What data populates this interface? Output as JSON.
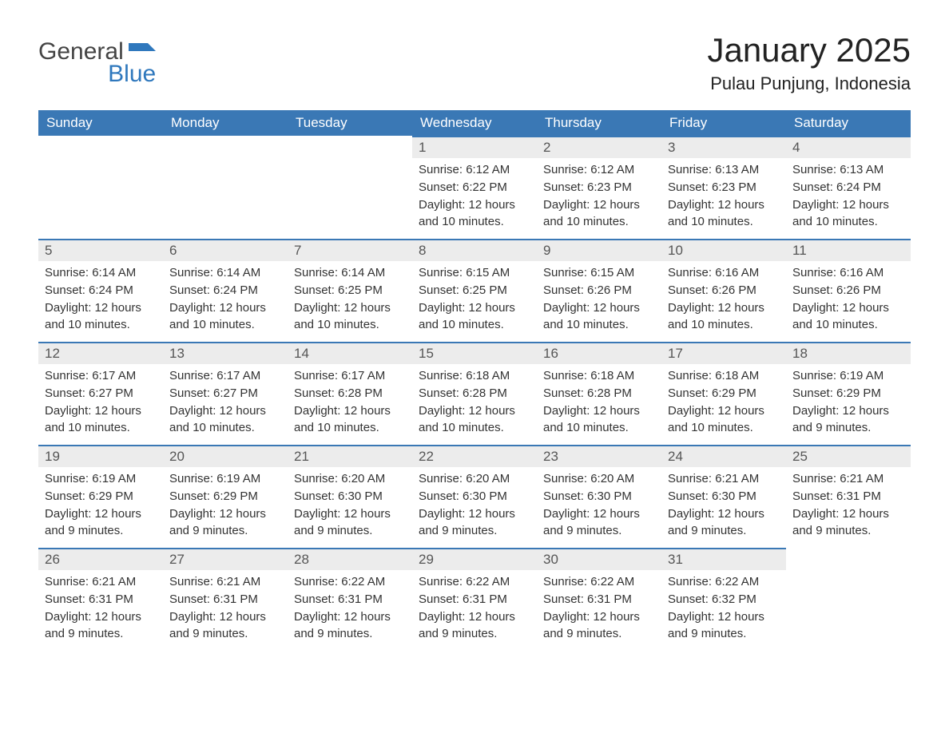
{
  "logo": {
    "text1": "General",
    "text2": "Blue"
  },
  "title": "January 2025",
  "location": "Pulau Punjung, Indonesia",
  "colors": {
    "header_bg": "#3a78b5",
    "header_text": "#ffffff",
    "daynum_bg": "#ececec",
    "daynum_border": "#3a78b5",
    "body_text": "#333333",
    "logo_gray": "#444444",
    "logo_blue": "#2f78bd",
    "page_bg": "#ffffff"
  },
  "columns": [
    "Sunday",
    "Monday",
    "Tuesday",
    "Wednesday",
    "Thursday",
    "Friday",
    "Saturday"
  ],
  "weeks": [
    [
      null,
      null,
      null,
      {
        "n": "1",
        "sunrise": "Sunrise: 6:12 AM",
        "sunset": "Sunset: 6:22 PM",
        "daylight": "Daylight: 12 hours and 10 minutes."
      },
      {
        "n": "2",
        "sunrise": "Sunrise: 6:12 AM",
        "sunset": "Sunset: 6:23 PM",
        "daylight": "Daylight: 12 hours and 10 minutes."
      },
      {
        "n": "3",
        "sunrise": "Sunrise: 6:13 AM",
        "sunset": "Sunset: 6:23 PM",
        "daylight": "Daylight: 12 hours and 10 minutes."
      },
      {
        "n": "4",
        "sunrise": "Sunrise: 6:13 AM",
        "sunset": "Sunset: 6:24 PM",
        "daylight": "Daylight: 12 hours and 10 minutes."
      }
    ],
    [
      {
        "n": "5",
        "sunrise": "Sunrise: 6:14 AM",
        "sunset": "Sunset: 6:24 PM",
        "daylight": "Daylight: 12 hours and 10 minutes."
      },
      {
        "n": "6",
        "sunrise": "Sunrise: 6:14 AM",
        "sunset": "Sunset: 6:24 PM",
        "daylight": "Daylight: 12 hours and 10 minutes."
      },
      {
        "n": "7",
        "sunrise": "Sunrise: 6:14 AM",
        "sunset": "Sunset: 6:25 PM",
        "daylight": "Daylight: 12 hours and 10 minutes."
      },
      {
        "n": "8",
        "sunrise": "Sunrise: 6:15 AM",
        "sunset": "Sunset: 6:25 PM",
        "daylight": "Daylight: 12 hours and 10 minutes."
      },
      {
        "n": "9",
        "sunrise": "Sunrise: 6:15 AM",
        "sunset": "Sunset: 6:26 PM",
        "daylight": "Daylight: 12 hours and 10 minutes."
      },
      {
        "n": "10",
        "sunrise": "Sunrise: 6:16 AM",
        "sunset": "Sunset: 6:26 PM",
        "daylight": "Daylight: 12 hours and 10 minutes."
      },
      {
        "n": "11",
        "sunrise": "Sunrise: 6:16 AM",
        "sunset": "Sunset: 6:26 PM",
        "daylight": "Daylight: 12 hours and 10 minutes."
      }
    ],
    [
      {
        "n": "12",
        "sunrise": "Sunrise: 6:17 AM",
        "sunset": "Sunset: 6:27 PM",
        "daylight": "Daylight: 12 hours and 10 minutes."
      },
      {
        "n": "13",
        "sunrise": "Sunrise: 6:17 AM",
        "sunset": "Sunset: 6:27 PM",
        "daylight": "Daylight: 12 hours and 10 minutes."
      },
      {
        "n": "14",
        "sunrise": "Sunrise: 6:17 AM",
        "sunset": "Sunset: 6:28 PM",
        "daylight": "Daylight: 12 hours and 10 minutes."
      },
      {
        "n": "15",
        "sunrise": "Sunrise: 6:18 AM",
        "sunset": "Sunset: 6:28 PM",
        "daylight": "Daylight: 12 hours and 10 minutes."
      },
      {
        "n": "16",
        "sunrise": "Sunrise: 6:18 AM",
        "sunset": "Sunset: 6:28 PM",
        "daylight": "Daylight: 12 hours and 10 minutes."
      },
      {
        "n": "17",
        "sunrise": "Sunrise: 6:18 AM",
        "sunset": "Sunset: 6:29 PM",
        "daylight": "Daylight: 12 hours and 10 minutes."
      },
      {
        "n": "18",
        "sunrise": "Sunrise: 6:19 AM",
        "sunset": "Sunset: 6:29 PM",
        "daylight": "Daylight: 12 hours and 9 minutes."
      }
    ],
    [
      {
        "n": "19",
        "sunrise": "Sunrise: 6:19 AM",
        "sunset": "Sunset: 6:29 PM",
        "daylight": "Daylight: 12 hours and 9 minutes."
      },
      {
        "n": "20",
        "sunrise": "Sunrise: 6:19 AM",
        "sunset": "Sunset: 6:29 PM",
        "daylight": "Daylight: 12 hours and 9 minutes."
      },
      {
        "n": "21",
        "sunrise": "Sunrise: 6:20 AM",
        "sunset": "Sunset: 6:30 PM",
        "daylight": "Daylight: 12 hours and 9 minutes."
      },
      {
        "n": "22",
        "sunrise": "Sunrise: 6:20 AM",
        "sunset": "Sunset: 6:30 PM",
        "daylight": "Daylight: 12 hours and 9 minutes."
      },
      {
        "n": "23",
        "sunrise": "Sunrise: 6:20 AM",
        "sunset": "Sunset: 6:30 PM",
        "daylight": "Daylight: 12 hours and 9 minutes."
      },
      {
        "n": "24",
        "sunrise": "Sunrise: 6:21 AM",
        "sunset": "Sunset: 6:30 PM",
        "daylight": "Daylight: 12 hours and 9 minutes."
      },
      {
        "n": "25",
        "sunrise": "Sunrise: 6:21 AM",
        "sunset": "Sunset: 6:31 PM",
        "daylight": "Daylight: 12 hours and 9 minutes."
      }
    ],
    [
      {
        "n": "26",
        "sunrise": "Sunrise: 6:21 AM",
        "sunset": "Sunset: 6:31 PM",
        "daylight": "Daylight: 12 hours and 9 minutes."
      },
      {
        "n": "27",
        "sunrise": "Sunrise: 6:21 AM",
        "sunset": "Sunset: 6:31 PM",
        "daylight": "Daylight: 12 hours and 9 minutes."
      },
      {
        "n": "28",
        "sunrise": "Sunrise: 6:22 AM",
        "sunset": "Sunset: 6:31 PM",
        "daylight": "Daylight: 12 hours and 9 minutes."
      },
      {
        "n": "29",
        "sunrise": "Sunrise: 6:22 AM",
        "sunset": "Sunset: 6:31 PM",
        "daylight": "Daylight: 12 hours and 9 minutes."
      },
      {
        "n": "30",
        "sunrise": "Sunrise: 6:22 AM",
        "sunset": "Sunset: 6:31 PM",
        "daylight": "Daylight: 12 hours and 9 minutes."
      },
      {
        "n": "31",
        "sunrise": "Sunrise: 6:22 AM",
        "sunset": "Sunset: 6:32 PM",
        "daylight": "Daylight: 12 hours and 9 minutes."
      },
      null
    ]
  ]
}
